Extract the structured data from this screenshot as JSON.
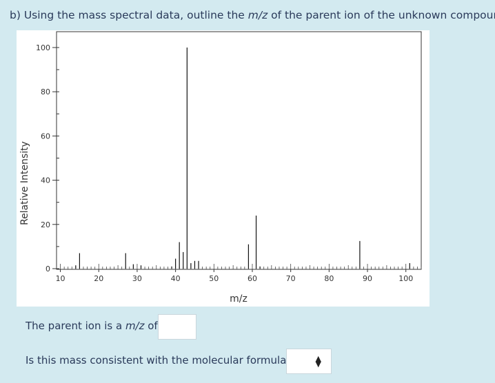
{
  "question": {
    "prefix": "b) Using the mass spectral data, outline the ",
    "mz": "m/z",
    "suffix": " of the parent ion of the unknown compound."
  },
  "parent_ion": {
    "label_prefix": "The parent ion is a ",
    "label_mz": "m/z",
    "label_suffix": " of",
    "value": ""
  },
  "consistency": {
    "label": "Is this mass consistent with the molecular formula?",
    "selected": "",
    "arrow_icon": "updown-arrows-icon"
  },
  "chart_data": {
    "type": "bar",
    "xlabel": "m/z",
    "ylabel": "Relative Intensity",
    "xlim": [
      9,
      104
    ],
    "ylim": [
      0,
      100
    ],
    "x_ticks": [
      10,
      20,
      30,
      40,
      50,
      60,
      70,
      80,
      90,
      100
    ],
    "y_ticks": [
      0,
      20,
      40,
      60,
      80,
      100
    ],
    "peaks": [
      {
        "mz": 14,
        "intensity": 1.5
      },
      {
        "mz": 15,
        "intensity": 7
      },
      {
        "mz": 27,
        "intensity": 7
      },
      {
        "mz": 29,
        "intensity": 2
      },
      {
        "mz": 31,
        "intensity": 1.5
      },
      {
        "mz": 39,
        "intensity": 1
      },
      {
        "mz": 40,
        "intensity": 4.5
      },
      {
        "mz": 41,
        "intensity": 12
      },
      {
        "mz": 42,
        "intensity": 7.5
      },
      {
        "mz": 43,
        "intensity": 100
      },
      {
        "mz": 44,
        "intensity": 2.5
      },
      {
        "mz": 45,
        "intensity": 3.5
      },
      {
        "mz": 46,
        "intensity": 3.5
      },
      {
        "mz": 59,
        "intensity": 11
      },
      {
        "mz": 61,
        "intensity": 24
      },
      {
        "mz": 62,
        "intensity": 1
      },
      {
        "mz": 88,
        "intensity": 12.5
      },
      {
        "mz": 101,
        "intensity": 2.5
      }
    ]
  }
}
